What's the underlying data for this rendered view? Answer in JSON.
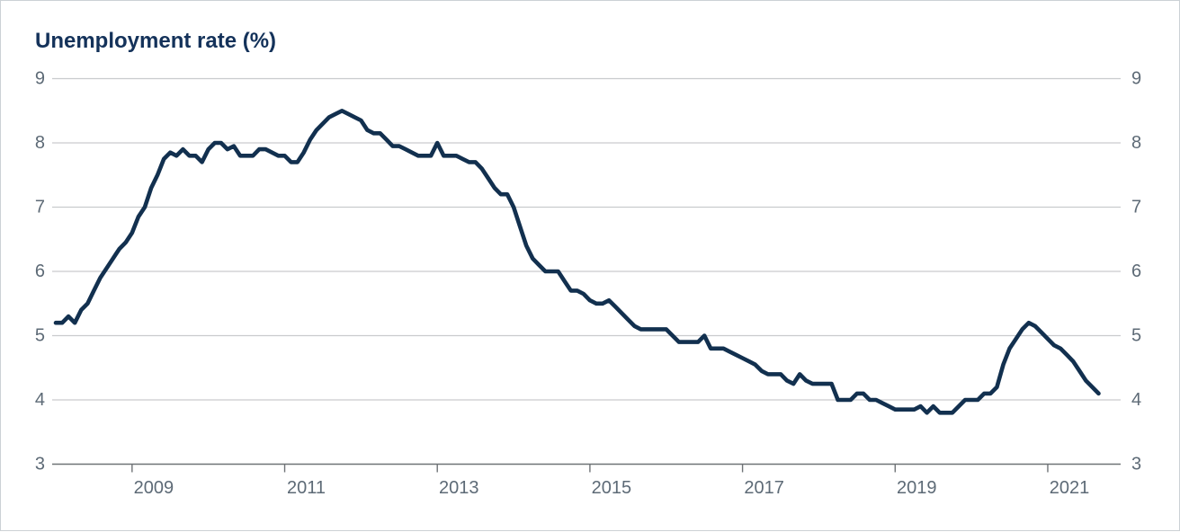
{
  "header": {
    "title": "Unemployment rate (%)"
  },
  "colors": {
    "line": "#12304f",
    "title": "#14325a",
    "tick_label": "#5d6a76",
    "gridline": "#c9cbcd",
    "axis_line": "#6e7276",
    "background": "#ffffff",
    "border": "#ccd1d5"
  },
  "chart_data": {
    "type": "line",
    "title": "Unemployment rate (%)",
    "frequency": "monthly",
    "x_start": "2008-01",
    "x_end": "2021-09",
    "x_tick_labels": [
      "2009",
      "2011",
      "2013",
      "2015",
      "2017",
      "2019",
      "2021"
    ],
    "x_tick_month_indices": [
      12,
      36,
      60,
      84,
      108,
      132,
      156
    ],
    "y_ticks": [
      3,
      4,
      5,
      6,
      7,
      8,
      9
    ],
    "ylim": [
      3,
      9
    ],
    "grid": "horizontal",
    "y_axis_sides": "both",
    "legend": "none",
    "series": [
      {
        "name": "Unemployment rate (%)",
        "values": [
          5.2,
          5.2,
          5.3,
          5.2,
          5.4,
          5.5,
          5.7,
          5.9,
          6.05,
          6.2,
          6.35,
          6.45,
          6.6,
          6.85,
          7.0,
          7.3,
          7.5,
          7.75,
          7.85,
          7.8,
          7.9,
          7.8,
          7.8,
          7.7,
          7.9,
          8.0,
          8.0,
          7.9,
          7.95,
          7.8,
          7.8,
          7.8,
          7.9,
          7.9,
          7.85,
          7.8,
          7.8,
          7.7,
          7.7,
          7.85,
          8.05,
          8.2,
          8.3,
          8.4,
          8.45,
          8.5,
          8.45,
          8.4,
          8.35,
          8.2,
          8.15,
          8.15,
          8.05,
          7.95,
          7.95,
          7.9,
          7.85,
          7.8,
          7.8,
          7.8,
          8.0,
          7.8,
          7.8,
          7.8,
          7.75,
          7.7,
          7.7,
          7.6,
          7.45,
          7.3,
          7.2,
          7.2,
          7.0,
          6.7,
          6.4,
          6.2,
          6.1,
          6.0,
          6.0,
          6.0,
          5.85,
          5.7,
          5.7,
          5.65,
          5.55,
          5.5,
          5.5,
          5.55,
          5.45,
          5.35,
          5.25,
          5.15,
          5.1,
          5.1,
          5.1,
          5.1,
          5.1,
          5.0,
          4.9,
          4.9,
          4.9,
          4.9,
          5.0,
          4.8,
          4.8,
          4.8,
          4.75,
          4.7,
          4.65,
          4.6,
          4.55,
          4.45,
          4.4,
          4.4,
          4.4,
          4.3,
          4.25,
          4.4,
          4.3,
          4.25,
          4.25,
          4.25,
          4.25,
          4.0,
          4.0,
          4.0,
          4.1,
          4.1,
          4.0,
          4.0,
          3.95,
          3.9,
          3.85,
          3.85,
          3.85,
          3.85,
          3.9,
          3.8,
          3.9,
          3.8,
          3.8,
          3.8,
          3.9,
          4.0,
          4.0,
          4.0,
          4.1,
          4.1,
          4.2,
          4.55,
          4.8,
          4.95,
          5.1,
          5.2,
          5.15,
          5.05,
          4.95,
          4.85,
          4.8,
          4.7,
          4.6,
          4.45,
          4.3,
          4.2,
          4.1
        ]
      }
    ]
  }
}
